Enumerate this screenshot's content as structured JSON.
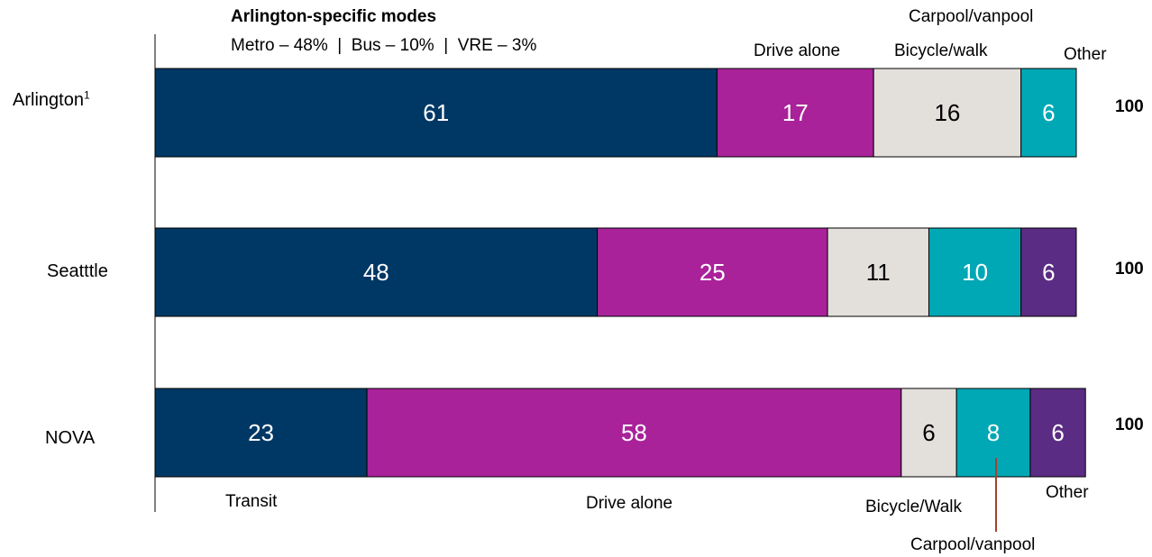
{
  "note": {
    "title": "Arlington-specific modes",
    "modes": "Metro – 48%  |  Bus – 10%  |  VRE – 3%"
  },
  "top_labels": {
    "carpool": "Carpool/vanpool",
    "drive_alone": "Drive alone",
    "bicycle": "Bicycle/walk",
    "other": "Other"
  },
  "bottom_labels": {
    "transit": "Transit",
    "drive_alone": "Drive alone",
    "bicycle": "Bicycle/Walk",
    "other": "Other",
    "carpool": "Carpool/vanpool"
  },
  "colors": {
    "transit": "#003865",
    "drive_alone": "#A9229A",
    "bicycle": "#E3E0DC",
    "carpool": "#00A8B5",
    "other": "#5B2C83",
    "leader": "#A0432E"
  },
  "chart_data": {
    "type": "bar",
    "orientation": "horizontal",
    "stacked": true,
    "categories": [
      {
        "name": "Arlington",
        "footnote": "1"
      },
      {
        "name": "Seatttle",
        "footnote": ""
      },
      {
        "name": "NOVA",
        "footnote": ""
      }
    ],
    "series": [
      {
        "name": "Transit",
        "key": "transit",
        "values": [
          61,
          48,
          23
        ]
      },
      {
        "name": "Drive alone",
        "key": "drive_alone",
        "values": [
          17,
          25,
          58
        ]
      },
      {
        "name": "Bicycle/walk",
        "key": "bicycle",
        "values": [
          16,
          11,
          6
        ]
      },
      {
        "name": "Carpool/vanpool",
        "key": "carpool",
        "values": [
          6,
          10,
          8
        ]
      },
      {
        "name": "Other",
        "key": "other",
        "values": [
          0,
          6,
          6
        ]
      }
    ],
    "totals": [
      100,
      100,
      100
    ],
    "xlim": [
      0,
      100
    ]
  }
}
